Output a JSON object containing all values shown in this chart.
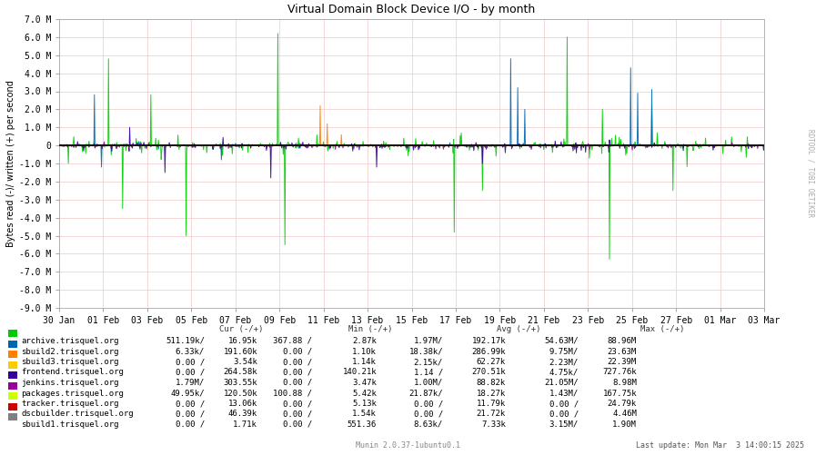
{
  "title": "Virtual Domain Block Device I/O - by month",
  "ylabel": "Bytes read (-)/ written (+) per second",
  "background_color": "#ffffff",
  "plot_bg_color": "#ffffff",
  "ylim": [
    -9000000,
    7000000
  ],
  "yticks": [
    -9000000,
    -8000000,
    -7000000,
    -6000000,
    -5000000,
    -4000000,
    -3000000,
    -2000000,
    -1000000,
    0,
    1000000,
    2000000,
    3000000,
    4000000,
    5000000,
    6000000,
    7000000
  ],
  "ytick_labels": [
    "-9.0 M",
    "-8.0 M",
    "-7.0 M",
    "-6.0 M",
    "-5.0 M",
    "-4.0 M",
    "-3.0 M",
    "-2.0 M",
    "-1.0 M",
    "0",
    "1.0 M",
    "2.0 M",
    "3.0 M",
    "4.0 M",
    "5.0 M",
    "6.0 M",
    "7.0 M"
  ],
  "x_start": 1738195200,
  "x_end": 1740960000,
  "xtick_positions": [
    1738195200,
    1738368000,
    1738540800,
    1738713600,
    1738886400,
    1739059200,
    1739232000,
    1739404800,
    1739577600,
    1739750400,
    1739923200,
    1740096000,
    1740268800,
    1740441600,
    1740614400,
    1740787200,
    1740960000
  ],
  "xtick_labels": [
    "30 Jan",
    "01 Feb",
    "03 Feb",
    "05 Feb",
    "07 Feb",
    "09 Feb",
    "11 Feb",
    "13 Feb",
    "15 Feb",
    "17 Feb",
    "19 Feb",
    "21 Feb",
    "23 Feb",
    "25 Feb",
    "27 Feb",
    "01 Mar",
    "03 Mar"
  ],
  "series": [
    {
      "name": "archive.trisquel.org",
      "color": "#00cc00"
    },
    {
      "name": "sbuild2.trisquel.org",
      "color": "#0066b3"
    },
    {
      "name": "sbuild3.trisquel.org",
      "color": "#ff8000"
    },
    {
      "name": "frontend.trisquel.org",
      "color": "#ffcc00"
    },
    {
      "name": "jenkins.trisquel.org",
      "color": "#330099"
    },
    {
      "name": "packages.trisquel.org",
      "color": "#990099"
    },
    {
      "name": "tracker.trisquel.org",
      "color": "#ccff00"
    },
    {
      "name": "dscbuilder.trisquel.org",
      "color": "#cc0000"
    },
    {
      "name": "sbuild1.trisquel.org",
      "color": "#808080"
    }
  ],
  "legend_data": [
    {
      "name": "archive.trisquel.org",
      "color": "#00cc00",
      "cur_r": "511.19k/",
      "cur_w": "16.95k",
      "min_r": "367.88 /",
      "min_w": "2.87k",
      "avg_r": "1.97M/",
      "avg_w": "192.17k",
      "max_r": "54.63M/",
      "max_w": "88.96M"
    },
    {
      "name": "sbuild2.trisquel.org",
      "color": "#0066b3",
      "cur_r": "6.33k/",
      "cur_w": "191.60k",
      "min_r": "0.00 /",
      "min_w": "1.10k",
      "avg_r": "18.38k/",
      "avg_w": "286.99k",
      "max_r": "9.75M/",
      "max_w": "23.63M"
    },
    {
      "name": "sbuild3.trisquel.org",
      "color": "#ff8000",
      "cur_r": "0.00 /",
      "cur_w": "3.54k",
      "min_r": "0.00 /",
      "min_w": "1.14k",
      "avg_r": "2.15k/",
      "avg_w": "62.27k",
      "max_r": "2.23M/",
      "max_w": "22.39M"
    },
    {
      "name": "frontend.trisquel.org",
      "color": "#ffcc00",
      "cur_r": "0.00 /",
      "cur_w": "264.58k",
      "min_r": "0.00 /",
      "min_w": "140.21k",
      "avg_r": "1.14 /",
      "avg_w": "270.51k",
      "max_r": "4.75k/",
      "max_w": "727.76k"
    },
    {
      "name": "jenkins.trisquel.org",
      "color": "#330099",
      "cur_r": "1.79M/",
      "cur_w": "303.55k",
      "min_r": "0.00 /",
      "min_w": "3.47k",
      "avg_r": "1.00M/",
      "avg_w": "88.82k",
      "max_r": "21.05M/",
      "max_w": "8.98M"
    },
    {
      "name": "packages.trisquel.org",
      "color": "#990099",
      "cur_r": "49.95k/",
      "cur_w": "120.50k",
      "min_r": "100.88 /",
      "min_w": "5.42k",
      "avg_r": "21.87k/",
      "avg_w": "18.27k",
      "max_r": "1.43M/",
      "max_w": "167.75k"
    },
    {
      "name": "tracker.trisquel.org",
      "color": "#ccff00",
      "cur_r": "0.00 /",
      "cur_w": "13.06k",
      "min_r": "0.00 /",
      "min_w": "5.13k",
      "avg_r": "0.00 /",
      "avg_w": "11.79k",
      "max_r": "0.00 /",
      "max_w": "24.79k"
    },
    {
      "name": "dscbuilder.trisquel.org",
      "color": "#cc0000",
      "cur_r": "0.00 /",
      "cur_w": "46.39k",
      "min_r": "0.00 /",
      "min_w": "1.54k",
      "avg_r": "0.00 /",
      "avg_w": "21.72k",
      "max_r": "0.00 /",
      "max_w": "4.46M"
    },
    {
      "name": "sbuild1.trisquel.org",
      "color": "#808080",
      "cur_r": "0.00 /",
      "cur_w": "1.71k",
      "min_r": "0.00 /",
      "min_w": "551.36",
      "avg_r": "8.63k/",
      "avg_w": "7.33k",
      "max_r": "3.15M/",
      "max_w": "1.90M"
    }
  ],
  "footer_center": "Munin 2.0.37-1ubuntu0.1",
  "footer_right": "Last update: Mon Mar  3 14:00:15 2025",
  "right_label": "RDTOOL / TOBI OETIKER"
}
